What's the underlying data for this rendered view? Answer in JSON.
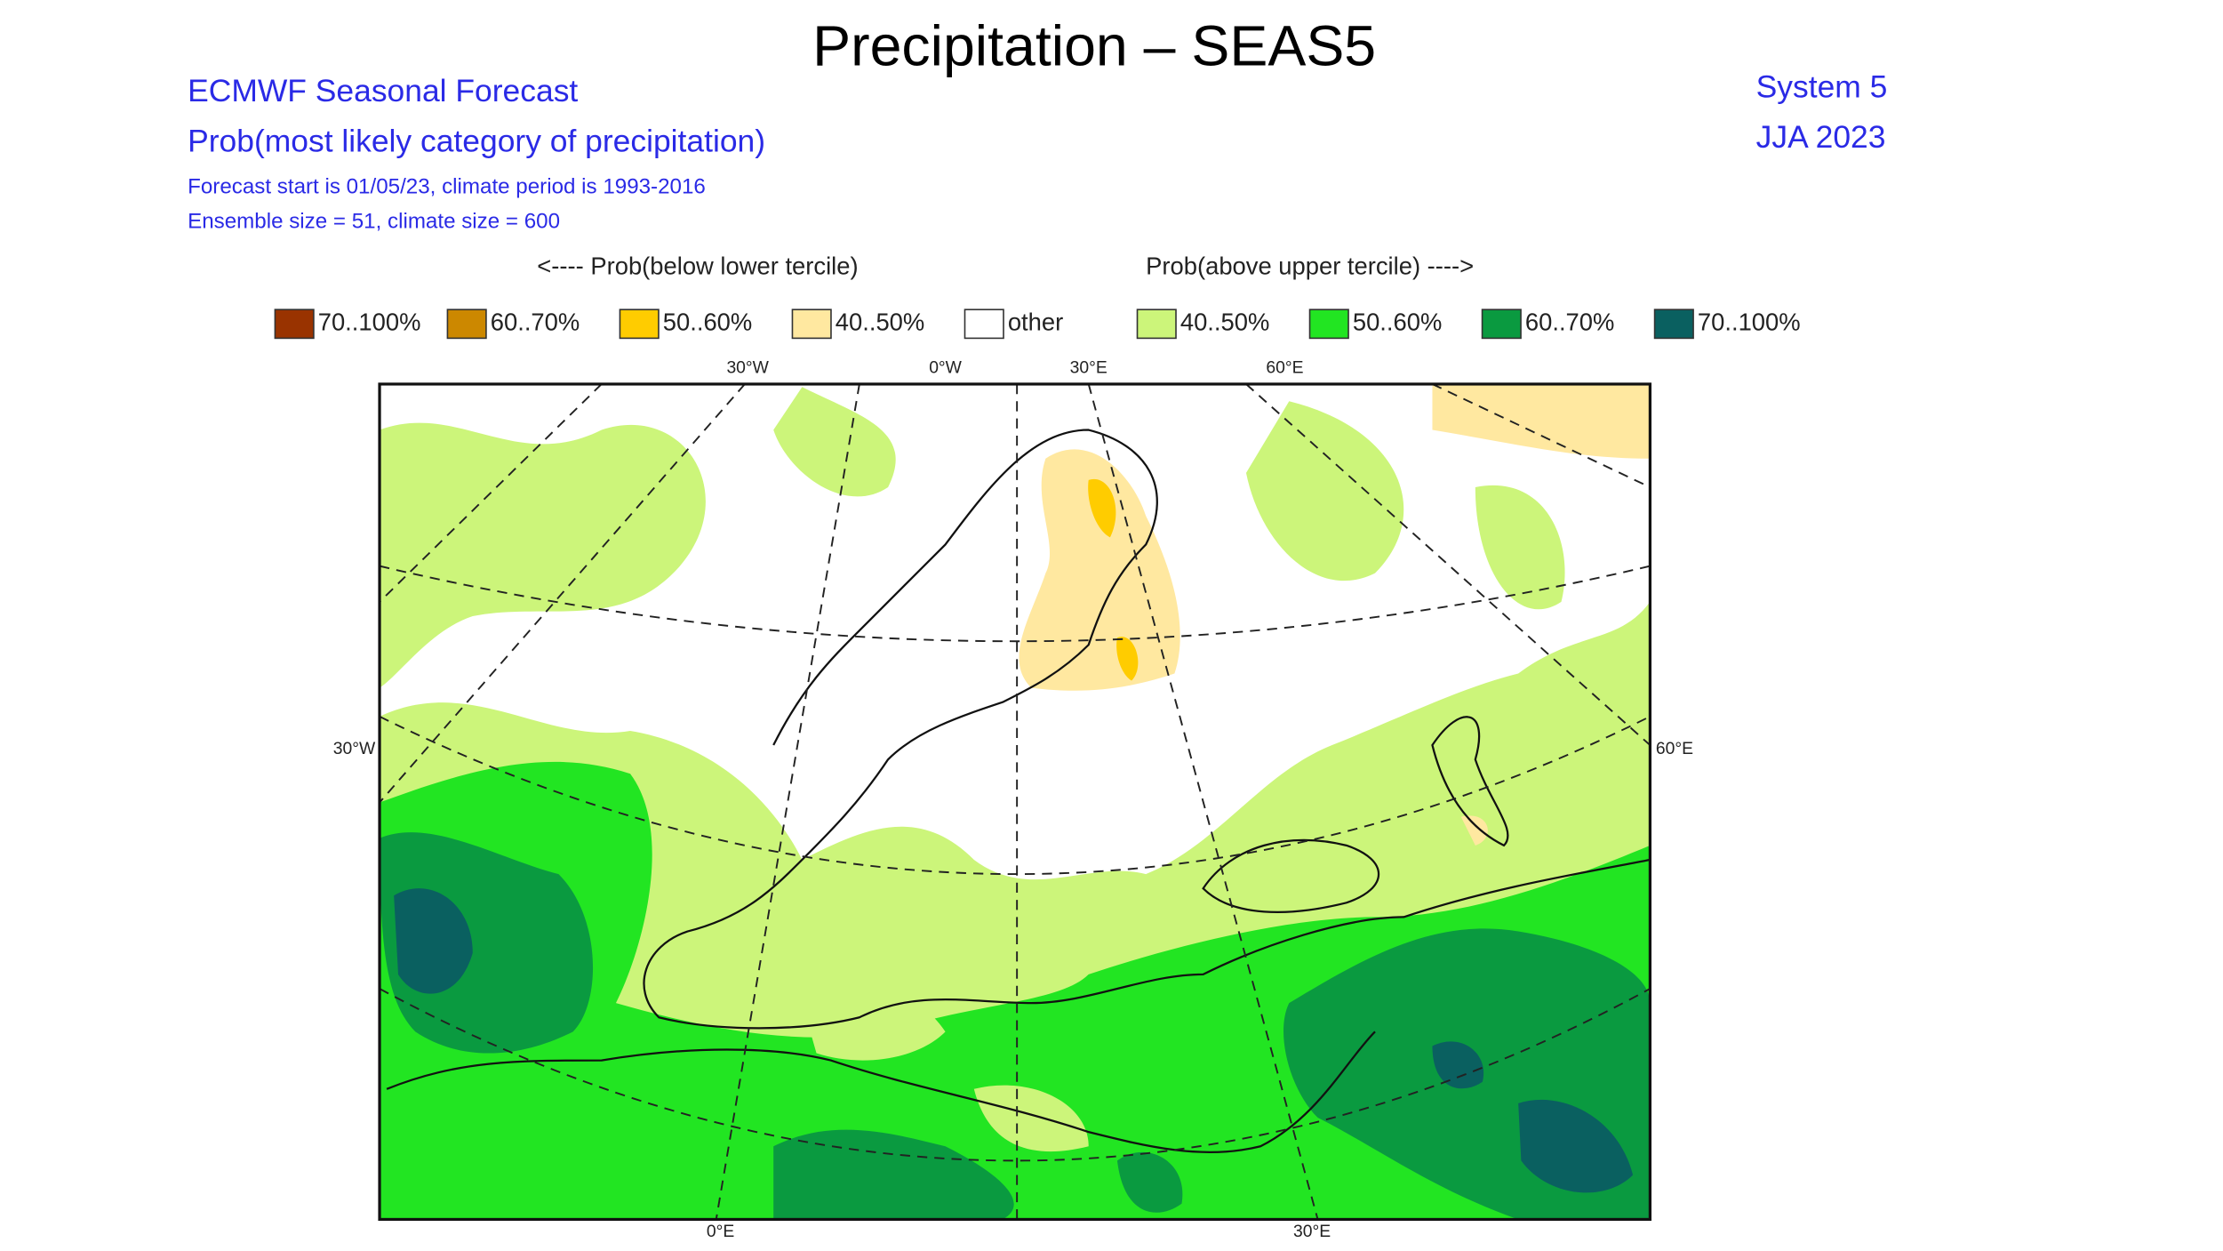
{
  "title": "Precipitation – SEAS5",
  "header_left": [
    "ECMWF Seasonal Forecast",
    "Prob(most likely category of precipitation)",
    "Forecast start is 01/05/23, climate period is 1993-2016",
    "Ensemble size = 51, climate size = 600"
  ],
  "header_right": [
    "System 5",
    "JJA 2023"
  ],
  "legend": {
    "below_title": "<---- Prob(below lower tercile)",
    "above_title": "Prob(above upper tercile) ---->",
    "items": [
      {
        "label": "70..100%",
        "color": "#993300"
      },
      {
        "label": "60..70%",
        "color": "#cc8800"
      },
      {
        "label": "50..60%",
        "color": "#ffcc00"
      },
      {
        "label": "40..50%",
        "color": "#ffe8a0"
      },
      {
        "label": "other",
        "color": "#ffffff"
      },
      {
        "label": "40..50%",
        "color": "#ccf57a"
      },
      {
        "label": "50..60%",
        "color": "#22e522"
      },
      {
        "label": "60..70%",
        "color": "#0a9a40"
      },
      {
        "label": "70..100%",
        "color": "#0a6060"
      }
    ]
  },
  "map_labels": {
    "top": [
      "30°W",
      "0°W",
      "30°E",
      "60°E"
    ],
    "left": "30°W",
    "right": "60°E",
    "bottom": [
      "0°E",
      "30°E"
    ]
  }
}
